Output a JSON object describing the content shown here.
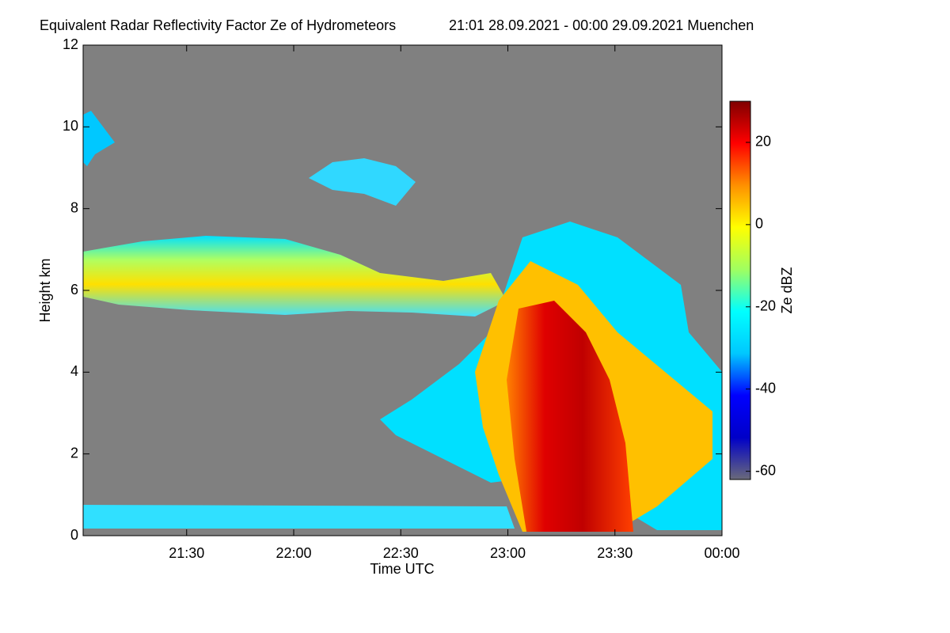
{
  "chart_data": {
    "type": "heatmap",
    "title": "Equivalent Radar Reflectivity Factor Ze of Hydrometeors",
    "subtitle": "21:01 28.09.2021 - 00:00 29.09.2021 Muenchen",
    "x_label": "Time UTC",
    "y_label": "Height km",
    "xlim": [
      1,
      180
    ],
    "xticks": [
      {
        "value": 30,
        "label": "21:30"
      },
      {
        "value": 60,
        "label": "22:00"
      },
      {
        "value": 90,
        "label": "22:30"
      },
      {
        "value": 120,
        "label": "23:00"
      },
      {
        "value": 150,
        "label": "23:30"
      },
      {
        "value": 180,
        "label": "00:00"
      }
    ],
    "ylim": [
      0,
      12
    ],
    "yticks": [
      0,
      2,
      4,
      6,
      8,
      10,
      12
    ],
    "colorbar_label": "Ze dBZ",
    "clim": [
      -62,
      30
    ],
    "cticks": [
      -60,
      -40,
      -20,
      0,
      20
    ],
    "colormap": [
      "#6a6a7a",
      "#0000c8",
      "#0000ff",
      "#00c8ff",
      "#00ffff",
      "#a0ff60",
      "#ffff00",
      "#ff9000",
      "#ff0000",
      "#800000"
    ]
  }
}
